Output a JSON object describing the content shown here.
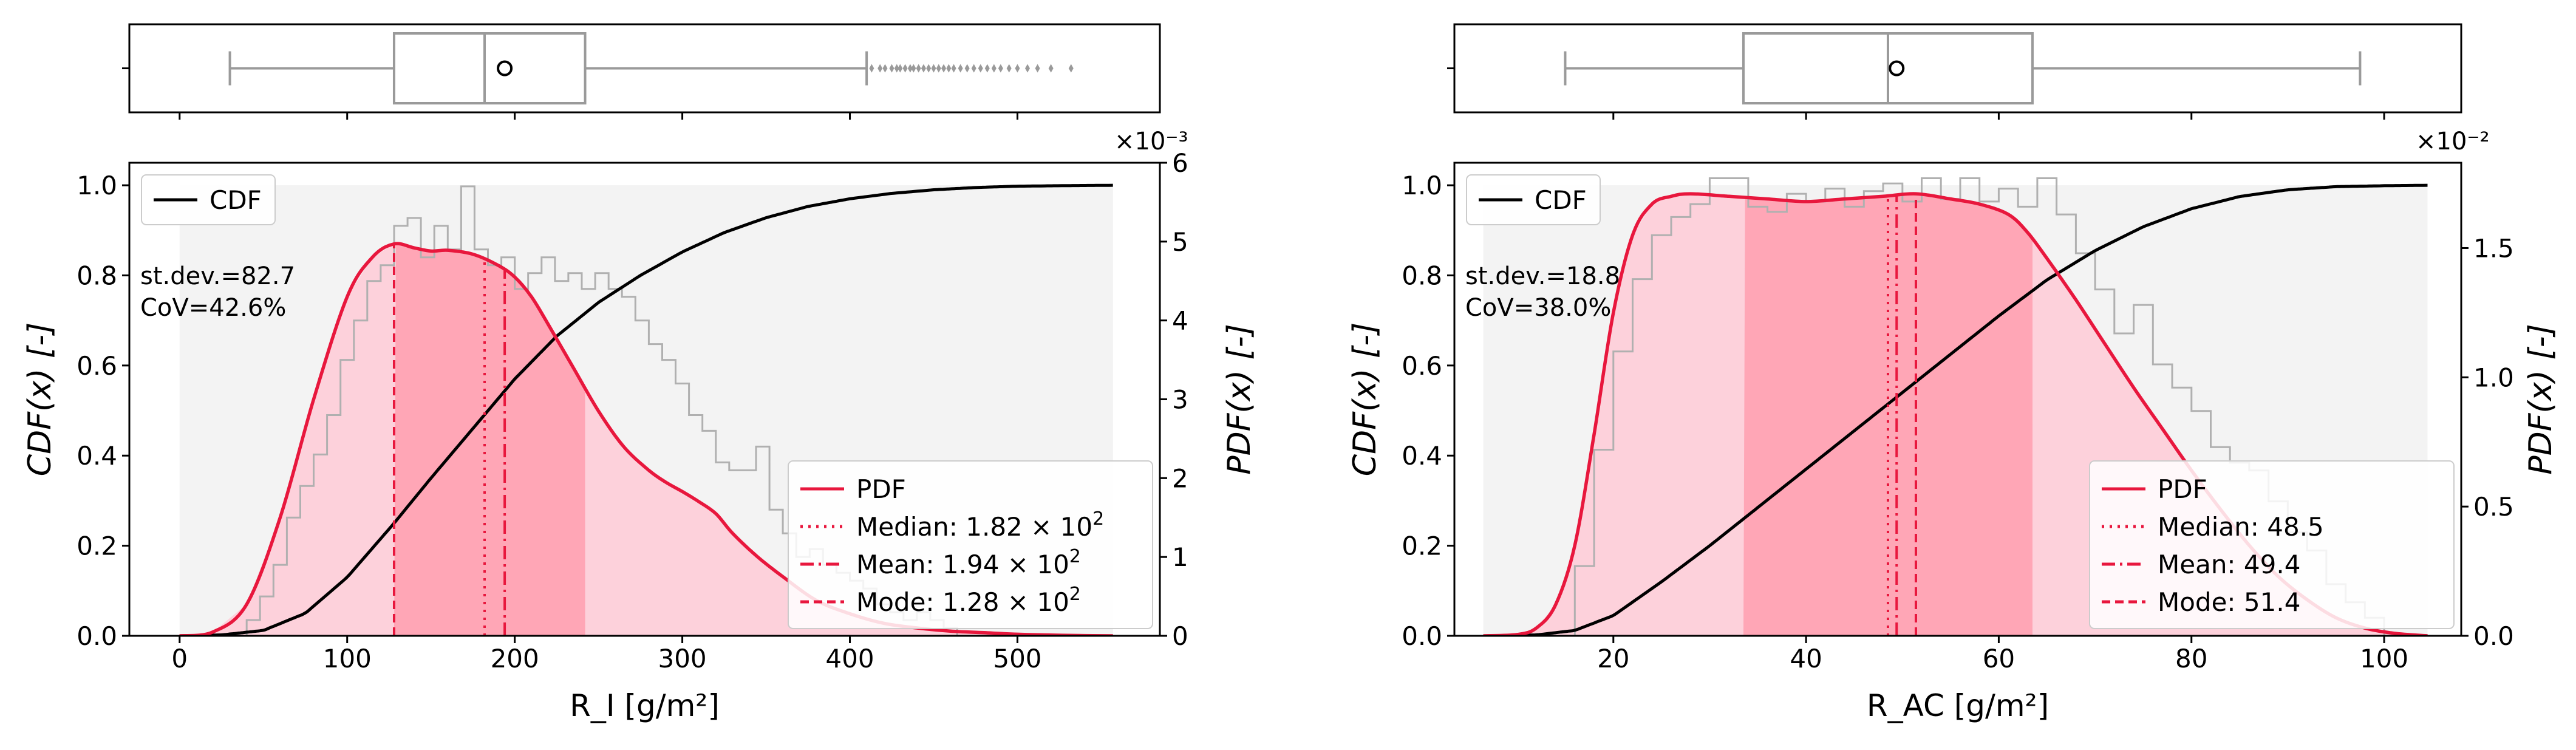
{
  "colors": {
    "pdf": "#e8173d",
    "pdf_fill": "#fdd1db",
    "iqr_fill": "#ffa6b6",
    "cdf": "#000000",
    "cdf_fill": "#f3f3f3",
    "hist": "#b0b0b0",
    "box": "#9a9a9a"
  },
  "chart_data": [
    {
      "type": "histogram+kde+cdf",
      "id": "R_I",
      "xlabel": "R_I [g/m²]",
      "ylabel_left": "CDF(x) [-]",
      "ylabel_right": "PDF(x) [-]",
      "right_axis_scale": "×10⁻³",
      "right_scale_factor": 0.001,
      "xlim": [
        -30,
        585
      ],
      "ylim_left": [
        0,
        1.05
      ],
      "ylim_right": [
        0,
        0.006
      ],
      "x_ticks": [
        0,
        100,
        200,
        300,
        400,
        500
      ],
      "x_tick_labels": [
        "0",
        "100",
        "200",
        "300",
        "400",
        "500"
      ],
      "y_left_ticks": [
        0,
        0.2,
        0.4,
        0.6,
        0.8,
        1.0
      ],
      "y_left_tick_labels": [
        "0.0",
        "0.2",
        "0.4",
        "0.6",
        "0.8",
        "1.0"
      ],
      "y_right_ticks": [
        0,
        0.001,
        0.002,
        0.003,
        0.004,
        0.005,
        0.006
      ],
      "y_right_tick_labels": [
        "0",
        "1",
        "2",
        "3",
        "4",
        "5",
        "6"
      ],
      "stats_lines": [
        "st.dev.=82.7",
        "CoV=42.6%"
      ],
      "cdf_legend": "CDF",
      "legend": [
        {
          "style": "solid",
          "label": "PDF"
        },
        {
          "style": "dotted",
          "label": "Median: 1.82 × 10",
          "sup": "2"
        },
        {
          "style": "dashdot",
          "label": "Mean: 1.94 × 10",
          "sup": "2"
        },
        {
          "style": "dashed",
          "label": "Mode: 1.28 × 10",
          "sup": "2"
        }
      ],
      "median": 182,
      "mean": 194,
      "mode": 128,
      "iqr": [
        128,
        242
      ],
      "support": [
        0,
        557
      ],
      "pdf_x": [
        0,
        20,
        40,
        60,
        80,
        100,
        115,
        128,
        140,
        150,
        160,
        175,
        190,
        200,
        210,
        220,
        235,
        250,
        265,
        280,
        290,
        300,
        310,
        320,
        330,
        345,
        360,
        380,
        400,
        420,
        440,
        460,
        480,
        500,
        520,
        540,
        557
      ],
      "pdf_y": [
        0,
        5e-05,
        0.0004,
        0.0015,
        0.003,
        0.0043,
        0.0048,
        0.00497,
        0.00492,
        0.00488,
        0.00489,
        0.00484,
        0.0047,
        0.00455,
        0.0043,
        0.00395,
        0.0034,
        0.00285,
        0.0024,
        0.0021,
        0.00195,
        0.00183,
        0.0017,
        0.00155,
        0.0013,
        0.001,
        0.00075,
        0.00045,
        0.00028,
        0.00016,
        0.0001,
        6e-05,
        4e-05,
        2e-05,
        1e-05,
        3e-06,
        0
      ],
      "cdf_x": [
        0,
        25,
        50,
        75,
        100,
        128,
        150,
        175,
        200,
        225,
        250,
        275,
        300,
        325,
        350,
        375,
        400,
        425,
        450,
        475,
        500,
        525,
        557
      ],
      "cdf_y": [
        0,
        0.002,
        0.012,
        0.05,
        0.13,
        0.25,
        0.35,
        0.46,
        0.57,
        0.665,
        0.74,
        0.8,
        0.852,
        0.895,
        0.928,
        0.953,
        0.97,
        0.982,
        0.99,
        0.995,
        0.998,
        0.999,
        1.0
      ],
      "hist_bin_width": 8,
      "hist_start": 40,
      "hist_y": [
        0.0002,
        0.0005,
        0.0009,
        0.0015,
        0.0019,
        0.0023,
        0.0028,
        0.0035,
        0.004,
        0.0045,
        0.0047,
        0.0052,
        0.0053,
        0.0048,
        0.0052,
        0.0049,
        0.0057,
        0.0049,
        0.0047,
        0.0048,
        0.0044,
        0.0046,
        0.0048,
        0.0045,
        0.0046,
        0.0044,
        0.0046,
        0.0044,
        0.0043,
        0.004,
        0.0037,
        0.0035,
        0.0032,
        0.0028,
        0.0026,
        0.0022,
        0.0021,
        0.0021,
        0.0024,
        0.0016,
        0.0013,
        0.001,
        0.0011,
        0.0009,
        0.0008,
        0.0007,
        0.0006,
        0.0004,
        0.0003,
        0.0002,
        0.0003,
        0.0002,
        0.0001
      ],
      "box": {
        "whisker_low": 30,
        "q1": 128,
        "median": 182,
        "q3": 242,
        "whisker_high": 410,
        "mean": 194,
        "outliers": [
          413,
          418,
          421,
          425,
          428,
          430,
          433,
          436,
          438,
          441,
          444,
          447,
          450,
          453,
          456,
          459,
          462,
          466,
          470,
          474,
          478,
          482,
          486,
          490,
          495,
          500,
          506,
          512,
          520,
          532
        ]
      }
    },
    {
      "type": "histogram+kde+cdf",
      "id": "R_AC",
      "xlabel": "R_AC [g/m²]",
      "ylabel_left": "CDF(x) [-]",
      "ylabel_right": "PDF(x) [-]",
      "right_axis_scale": "×10⁻²",
      "right_scale_factor": 0.01,
      "xlim": [
        3.5,
        108
      ],
      "ylim_left": [
        0,
        1.05
      ],
      "ylim_right": [
        0,
        0.0183
      ],
      "x_ticks": [
        20,
        40,
        60,
        80,
        100
      ],
      "x_tick_labels": [
        "20",
        "40",
        "60",
        "80",
        "100"
      ],
      "y_left_ticks": [
        0,
        0.2,
        0.4,
        0.6,
        0.8,
        1.0
      ],
      "y_left_tick_labels": [
        "0.0",
        "0.2",
        "0.4",
        "0.6",
        "0.8",
        "1.0"
      ],
      "y_right_ticks": [
        0,
        0.005,
        0.01,
        0.015
      ],
      "y_right_tick_labels": [
        "0.0",
        "0.5",
        "1.0",
        "1.5"
      ],
      "stats_lines": [
        "st.dev.=18.8",
        "CoV=38.0%"
      ],
      "cdf_legend": "CDF",
      "legend": [
        {
          "style": "solid",
          "label": "PDF"
        },
        {
          "style": "dotted",
          "label": "Median: 48.5"
        },
        {
          "style": "dashdot",
          "label": "Mean: 49.4"
        },
        {
          "style": "dashed",
          "label": "Mode: 51.4"
        }
      ],
      "median": 48.5,
      "mean": 49.4,
      "mode": 51.4,
      "iqr": [
        33.5,
        63.5
      ],
      "support": [
        6.5,
        104.5
      ],
      "pdf_x": [
        6.5,
        10,
        12,
        14,
        16,
        18,
        20,
        22,
        24,
        26,
        28,
        32,
        36,
        40,
        44,
        48,
        51.4,
        55,
        58,
        61,
        63,
        65,
        68,
        71,
        74,
        77,
        80,
        83,
        86,
        89,
        92,
        95,
        98,
        101,
        104.5
      ],
      "pdf_y": [
        0,
        5e-05,
        0.0003,
        0.0012,
        0.0035,
        0.0078,
        0.0125,
        0.0155,
        0.0167,
        0.017,
        0.0171,
        0.017,
        0.0169,
        0.0168,
        0.0169,
        0.017,
        0.0171,
        0.0169,
        0.0167,
        0.0163,
        0.0156,
        0.0146,
        0.013,
        0.0113,
        0.0096,
        0.008,
        0.0064,
        0.0049,
        0.0035,
        0.0023,
        0.0014,
        0.0007,
        0.0003,
        0.0001,
        0
      ],
      "cdf_x": [
        6.5,
        12,
        16,
        20,
        25,
        30,
        35,
        40,
        45,
        50,
        55,
        60,
        65,
        70,
        75,
        80,
        85,
        90,
        95,
        100,
        104.5
      ],
      "cdf_y": [
        0,
        0.002,
        0.012,
        0.045,
        0.12,
        0.2,
        0.285,
        0.37,
        0.455,
        0.54,
        0.625,
        0.71,
        0.79,
        0.855,
        0.908,
        0.948,
        0.975,
        0.99,
        0.997,
        0.999,
        1.0
      ],
      "hist_bin_width": 2,
      "hist_start": 16,
      "hist_y": [
        0.0027,
        0.0072,
        0.011,
        0.0138,
        0.0155,
        0.0162,
        0.0167,
        0.0177,
        0.0177,
        0.0166,
        0.0164,
        0.0171,
        0.0168,
        0.0173,
        0.0166,
        0.0172,
        0.0175,
        0.0168,
        0.0177,
        0.0169,
        0.0177,
        0.0168,
        0.0173,
        0.0166,
        0.0177,
        0.0163,
        0.0148,
        0.0134,
        0.0117,
        0.0128,
        0.0105,
        0.0096,
        0.0087,
        0.0073,
        0.0067,
        0.0064,
        0.0052,
        0.004,
        0.0033,
        0.002,
        0.0013,
        0.0007
      ],
      "box": {
        "whisker_low": 15,
        "q1": 33.5,
        "median": 48.5,
        "q3": 63.5,
        "whisker_high": 97.5,
        "mean": 49.4,
        "outliers": []
      }
    }
  ]
}
